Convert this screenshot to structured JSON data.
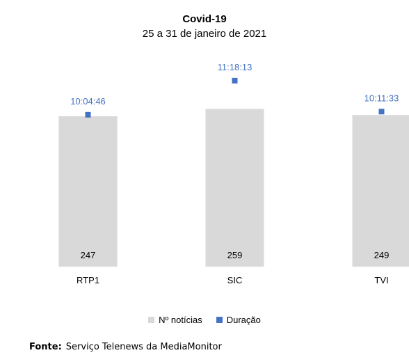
{
  "chart_data": {
    "type": "bar",
    "title": "Covid-19",
    "subtitle": "25 a 31 de janeiro de 2021",
    "categories": [
      "RTP1",
      "SIC",
      "TVI"
    ],
    "series": [
      {
        "name": "Nº notícias",
        "kind": "bar",
        "values": [
          247,
          259,
          249
        ],
        "color": "#d9d9d9"
      },
      {
        "name": "Duração",
        "kind": "marker",
        "values": [
          "10:04:46",
          "11:18:13",
          "10:11:33"
        ],
        "color": "#4472c4"
      }
    ],
    "bar_label_color": "#000000",
    "marker_label_color": "#4472c4",
    "grid": false,
    "legend": "bottom"
  },
  "source": {
    "label": "Fonte:",
    "text": "Serviço Telenews da MediaMonitor"
  }
}
